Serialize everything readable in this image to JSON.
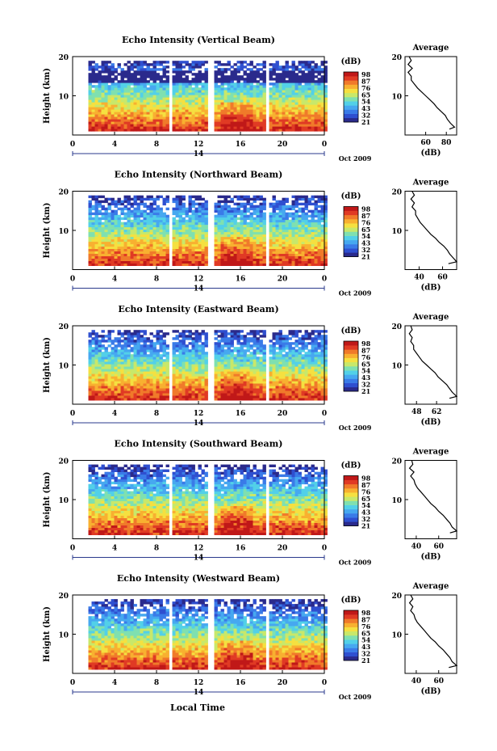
{
  "figure": {
    "bottom_label": "Local Time"
  },
  "colorbar": {
    "unit": "(dB)",
    "colors": [
      "#2a2a8c",
      "#2f4fd0",
      "#3a7be8",
      "#46a8f0",
      "#52d0e8",
      "#7fe0b0",
      "#c8e86a",
      "#f5e040",
      "#f8b030",
      "#f07a2a",
      "#e03a24",
      "#c01818"
    ]
  },
  "chart_data": [
    {
      "type": "heatmap",
      "title": "Echo Intensity (Vertical Beam)",
      "ylabel": "Height (km)",
      "ylim": [
        0,
        20
      ],
      "y_ticks": [
        "20",
        "10"
      ],
      "xlim": [
        0,
        24
      ],
      "x_ticks": [
        "0",
        "4",
        "8",
        "12",
        "16",
        "20",
        "0"
      ],
      "date_tick": "14",
      "date_label": "Oct 2009",
      "colorbar_ticks": [
        "98",
        "87",
        "76",
        "65",
        "54",
        "43",
        "32",
        "21"
      ],
      "data_gaps_hours": [
        [
          8.9,
          9.3
        ],
        [
          12.8,
          13.3
        ],
        [
          18.3,
          18.7
        ]
      ],
      "profile": {
        "title": "Average",
        "xlabel": "(dB)",
        "x_ticks": [
          "60",
          "80"
        ],
        "xlim": [
          40,
          90
        ],
        "y_ticks": [
          "20",
          "10"
        ],
        "ylim": [
          0,
          20
        ],
        "heights_km": [
          20,
          19,
          18,
          17,
          16,
          15,
          14,
          13,
          12,
          11,
          10,
          9,
          8,
          7,
          6,
          5,
          4,
          3,
          2,
          1.5
        ],
        "values_db": [
          44,
          46,
          43,
          47,
          43,
          46,
          46,
          49,
          52,
          56,
          60,
          64,
          68,
          71,
          75,
          79,
          81,
          84,
          88,
          83
        ]
      }
    },
    {
      "type": "heatmap",
      "title": "Echo Intensity (Northward Beam)",
      "ylabel": "Height (km)",
      "ylim": [
        0,
        20
      ],
      "y_ticks": [
        "20",
        "10"
      ],
      "xlim": [
        0,
        24
      ],
      "x_ticks": [
        "0",
        "4",
        "8",
        "12",
        "16",
        "20",
        "0"
      ],
      "date_tick": "14",
      "date_label": "Oct 2009",
      "colorbar_ticks": [
        "98",
        "87",
        "76",
        "65",
        "54",
        "43",
        "32",
        "21"
      ],
      "data_gaps_hours": [
        [
          8.9,
          9.3
        ],
        [
          12.8,
          13.3
        ],
        [
          18.3,
          18.7
        ]
      ],
      "profile": {
        "title": "Average",
        "xlabel": "(dB)",
        "x_ticks": [
          "40",
          "60"
        ],
        "xlim": [
          28,
          72
        ],
        "y_ticks": [
          "20",
          "10"
        ],
        "ylim": [
          0,
          20
        ],
        "heights_km": [
          20,
          19,
          18,
          17,
          16,
          15,
          14,
          13,
          12,
          11,
          10,
          9,
          8,
          7,
          6,
          5,
          4,
          3,
          2,
          1.5
        ],
        "values_db": [
          34,
          36,
          33,
          36,
          34,
          37,
          37,
          39,
          41,
          44,
          47,
          50,
          54,
          57,
          61,
          64,
          66,
          69,
          72,
          65
        ]
      }
    },
    {
      "type": "heatmap",
      "title": "Echo Intensity (Eastward Beam)",
      "ylabel": "Height (km)",
      "ylim": [
        0,
        20
      ],
      "y_ticks": [
        "20",
        "10"
      ],
      "xlim": [
        0,
        24
      ],
      "x_ticks": [
        "0",
        "4",
        "8",
        "12",
        "16",
        "20",
        "0"
      ],
      "date_tick": "14",
      "date_label": "Oct 2009",
      "colorbar_ticks": [
        "98",
        "87",
        "76",
        "65",
        "54",
        "43",
        "32",
        "21"
      ],
      "data_gaps_hours": [
        [
          8.9,
          9.3
        ],
        [
          12.8,
          13.3
        ],
        [
          18.3,
          18.7
        ]
      ],
      "profile": {
        "title": "Average",
        "xlabel": "(dB)",
        "x_ticks": [
          "48",
          "62"
        ],
        "xlim": [
          40,
          76
        ],
        "y_ticks": [
          "20",
          "10"
        ],
        "ylim": [
          0,
          20
        ],
        "heights_km": [
          20,
          19,
          18,
          17,
          16,
          15,
          14,
          13,
          12,
          11,
          10,
          9,
          8,
          7,
          6,
          5,
          4,
          3,
          2,
          1.5
        ],
        "values_db": [
          44,
          45,
          43,
          45,
          44,
          46,
          46,
          48,
          50,
          52,
          55,
          58,
          61,
          63,
          66,
          69,
          71,
          73,
          76,
          71
        ]
      }
    },
    {
      "type": "heatmap",
      "title": "Echo Intensity (Southward Beam)",
      "ylabel": "Height (km)",
      "ylim": [
        0,
        20
      ],
      "y_ticks": [
        "20",
        "10"
      ],
      "xlim": [
        0,
        24
      ],
      "x_ticks": [
        "0",
        "4",
        "8",
        "12",
        "16",
        "20",
        "0"
      ],
      "date_tick": "14",
      "date_label": "Oct 2009",
      "colorbar_ticks": [
        "98",
        "87",
        "76",
        "65",
        "54",
        "43",
        "32",
        "21"
      ],
      "data_gaps_hours": [
        [
          8.9,
          9.3
        ],
        [
          12.8,
          13.3
        ],
        [
          18.3,
          18.7
        ]
      ],
      "profile": {
        "title": "Average",
        "xlabel": "(dB)",
        "x_ticks": [
          "40",
          "60"
        ],
        "xlim": [
          30,
          76
        ],
        "y_ticks": [
          "20",
          "10"
        ],
        "ylim": [
          0,
          20
        ],
        "heights_km": [
          20,
          19,
          18,
          17,
          16,
          15,
          14,
          13,
          12,
          11,
          10,
          9,
          8,
          7,
          6,
          5,
          4,
          3,
          2,
          1.5
        ],
        "values_db": [
          36,
          37,
          34,
          38,
          35,
          38,
          39,
          41,
          44,
          47,
          50,
          53,
          57,
          60,
          64,
          67,
          70,
          72,
          76,
          70
        ]
      }
    },
    {
      "type": "heatmap",
      "title": "Echo Intensity (Westward Beam)",
      "ylabel": "Height (km)",
      "ylim": [
        0,
        20
      ],
      "y_ticks": [
        "20",
        "10"
      ],
      "xlim": [
        0,
        24
      ],
      "x_ticks": [
        "0",
        "4",
        "8",
        "12",
        "16",
        "20",
        "0"
      ],
      "date_tick": "14",
      "date_label": "Oct 2009",
      "colorbar_ticks": [
        "98",
        "87",
        "76",
        "65",
        "54",
        "43",
        "32",
        "21"
      ],
      "data_gaps_hours": [
        [
          8.9,
          9.3
        ],
        [
          12.8,
          13.3
        ],
        [
          18.3,
          18.7
        ]
      ],
      "profile": {
        "title": "Average",
        "xlabel": "(dB)",
        "x_ticks": [
          "40",
          "60"
        ],
        "xlim": [
          30,
          76
        ],
        "y_ticks": [
          "20",
          "10"
        ],
        "ylim": [
          0,
          20
        ],
        "heights_km": [
          20,
          19,
          18,
          17,
          16,
          15,
          14,
          13,
          12,
          11,
          10,
          9,
          8,
          7,
          6,
          5,
          4,
          3,
          2,
          1.5
        ],
        "values_db": [
          35,
          37,
          34,
          37,
          35,
          38,
          39,
          41,
          44,
          47,
          50,
          53,
          57,
          60,
          64,
          67,
          70,
          72,
          76,
          69
        ]
      }
    }
  ]
}
